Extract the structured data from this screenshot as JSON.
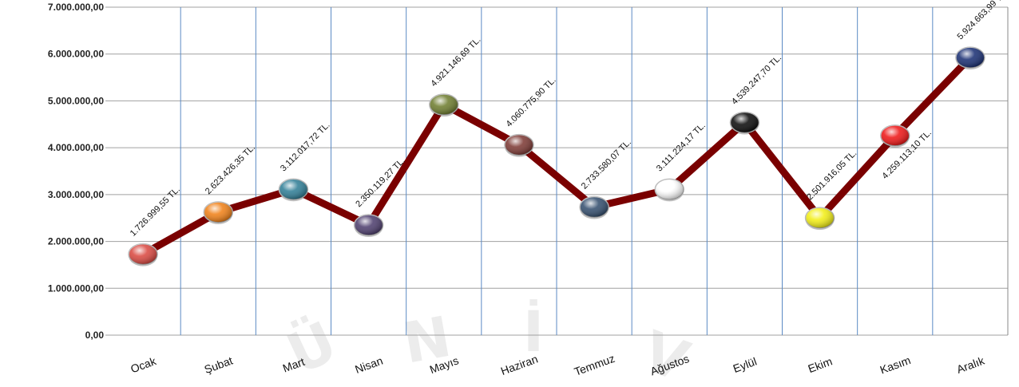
{
  "chart_data": {
    "type": "line",
    "categories": [
      "Ocak",
      "Şubat",
      "Mart",
      "Nisan",
      "Mayıs",
      "Haziran",
      "Temmuz",
      "Ağustos",
      "Eylül",
      "Ekim",
      "Kasım",
      "Aralık"
    ],
    "values": [
      1726999.55,
      2623426.35,
      3112017.72,
      2350119.27,
      4921146.69,
      4060775.9,
      2733580.07,
      3111224.17,
      4539247.7,
      2501916.05,
      4259113.1,
      5924663.99
    ],
    "data_labels": [
      "1.726.999,55 TL.",
      "2.623.426,35 TL.",
      "3.112.017,72 TL.",
      "2.350.119,27 TL.",
      "4.921.146,69 TL.",
      "4.060.775,90 TL.",
      "2.733.580,07 TL.",
      "3.111.224,17 TL.",
      "4.539.247,70 TL.",
      "2.501.916,05 TL.",
      "4.259.113,10 TL.",
      "5.924.663,99 TL."
    ],
    "label_position": [
      "above",
      "above",
      "above",
      "above",
      "above",
      "above",
      "above",
      "above",
      "above",
      "above",
      "below",
      "above"
    ],
    "ylim": [
      0,
      7000000
    ],
    "yticks": [
      0,
      1000000,
      2000000,
      3000000,
      4000000,
      5000000,
      6000000,
      7000000
    ],
    "ytick_labels": [
      "0,00",
      "1.000.000,00",
      "2.000.000,00",
      "3.000.000,00",
      "4.000.000,00",
      "5.000.000,00",
      "6.000.000,00",
      "7.000.000,00"
    ],
    "line_color": "#7a0000",
    "marker_colors": [
      "#d9443c",
      "#f07e12",
      "#2b7b94",
      "#4a3a6b",
      "#6b7a2a",
      "#7a3530",
      "#2f4a6b",
      "#ffffff",
      "#050505",
      "#f2ee10",
      "#ee1111",
      "#142a70"
    ],
    "grid": {
      "horizontal": true,
      "vertical": true
    },
    "horizontal_grid_color": "#a0a0a0",
    "vertical_grid_color": "#5b8ac4",
    "title": "",
    "xlabel": "",
    "ylabel": "",
    "legend": "none",
    "watermark": [
      "Ü",
      "N",
      "İ",
      "V"
    ]
  }
}
